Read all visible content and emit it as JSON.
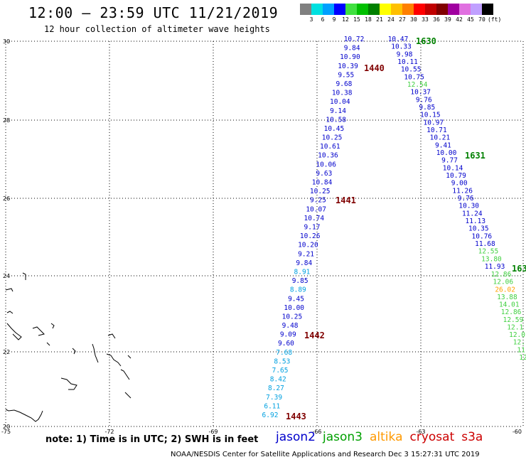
{
  "header": {
    "title": "12:00 – 23:59 UTC 11/21/2019",
    "subtitle": "12 hour collection of altimeter wave heights"
  },
  "scale": {
    "unit": "(ft)",
    "labels": [
      "3",
      "6",
      "9",
      "12",
      "15",
      "18",
      "21",
      "24",
      "27",
      "30",
      "33",
      "36",
      "39",
      "42",
      "45",
      "70"
    ],
    "colors": [
      "#808080",
      "#00e0e0",
      "#00a0ff",
      "#0000ff",
      "#40e040",
      "#00c000",
      "#008000",
      "#ffff00",
      "#ffc000",
      "#ff8000",
      "#ff0000",
      "#c00000",
      "#800000",
      "#a000a0",
      "#e070e0",
      "#c0a0ff",
      "#000000"
    ]
  },
  "axes": {
    "lat_labels": [
      "30",
      "28",
      "26",
      "24",
      "22",
      "20"
    ],
    "lon_labels": [
      "-75",
      "-72",
      "-69",
      "-66",
      "-63",
      "-60"
    ]
  },
  "tracks": [
    {
      "name": "jason2-descending",
      "color": "#0000cc",
      "pass": "",
      "values": [
        "10.72",
        "9.84",
        "10.90",
        "10.39",
        "9.55",
        "9.68",
        "10.38",
        "10.04",
        "9.14",
        "10.58",
        "10.45",
        "10.25",
        "10.61",
        "10.36",
        "10.06",
        "9.63",
        "10.84",
        "10.25",
        "9.25",
        "10.07",
        "10.74",
        "9.17",
        "10.26",
        "10.20",
        "9.21",
        "9.84",
        "8.91",
        "9.85",
        "8.89",
        "9.45",
        "10.00",
        "10.25",
        "9.48",
        "9.09",
        "9.60",
        "7.68",
        "8.53",
        "7.65",
        "8.42",
        "8.27",
        "7.39",
        "6.11",
        "6.92"
      ]
    },
    {
      "name": "jason2-ascending",
      "color": "#0000cc",
      "pass": "",
      "values": [
        "10.47",
        "10.33",
        "9.98",
        "10.11",
        "10.55",
        "10.75",
        "12.54",
        "10.37",
        "9.76",
        "9.85",
        "10.15",
        "10.97",
        "10.71",
        "10.21",
        "9.41",
        "10.00",
        "9.77",
        "10.14",
        "10.79",
        "9.00",
        "11.26",
        "9.76",
        "10.30",
        "11.24",
        "11.13",
        "10.35",
        "10.76",
        "11.68",
        "12.55",
        "13.80",
        "11.93"
      ]
    },
    {
      "name": "jason3-ascending",
      "color": "#40e040",
      "pass": "",
      "values": [
        "12.86",
        "12.06",
        "26.02",
        "13.88",
        "14.01",
        "12.86",
        "12.59",
        "12.1",
        "12.0",
        "12.",
        "11",
        "12"
      ]
    }
  ],
  "pass_labels": [
    "1630",
    "1631",
    "163",
    "1440",
    "1441",
    "1442",
    "1443"
  ],
  "note": "note: 1) Time is in UTC; 2) SWH is in feet",
  "legend": [
    {
      "name": "jason2",
      "color": "#0000cc"
    },
    {
      "name": "jason3",
      "color": "#00a000"
    },
    {
      "name": "altika",
      "color": "#ff9900"
    },
    {
      "name": "cryosat",
      "color": "#cc0000"
    },
    {
      "name": "s3a",
      "color": "#cc0000"
    }
  ],
  "credit": "NOAA/NESDIS Center for Satellite Applications and Research   Dec  3 15:27:31 UTC 2019"
}
